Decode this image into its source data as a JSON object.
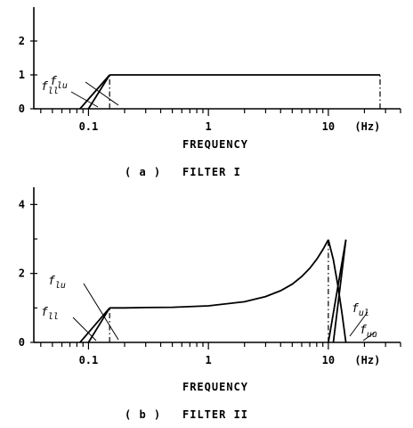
{
  "chart_data": [
    {
      "type": "line",
      "caption_label": "( a )",
      "caption_title": "FILTER  I",
      "xlabel": "FREQUENCY",
      "x_unit": "(Hz)",
      "x_scale": "log",
      "xlim": [
        0.035,
        40
      ],
      "ylim": [
        0,
        3
      ],
      "x_tick_labels": [
        {
          "value": 0.1,
          "text": "0.1"
        },
        {
          "value": 1,
          "text": "1"
        },
        {
          "value": 10,
          "text": "10"
        }
      ],
      "y_tick_labels": [
        {
          "value": 0,
          "text": "0"
        },
        {
          "value": 1,
          "text": "1"
        },
        {
          "value": 2,
          "text": "2"
        }
      ],
      "series": [
        {
          "x": [
            0.15,
            27
          ],
          "y": [
            1.0,
            1.0
          ]
        },
        {
          "x": [
            0.085,
            0.15
          ],
          "y": [
            0,
            1.0
          ]
        },
        {
          "x": [
            0.1,
            0.15
          ],
          "y": [
            0,
            1.0
          ]
        }
      ],
      "cutoff_x": [
        0.15,
        27
      ],
      "annotations": [
        {
          "text": "f",
          "sub": "lu",
          "x": 0.15,
          "y": 0.6
        },
        {
          "text": "f",
          "sub": "ll",
          "x": 0.1,
          "y": 0.05
        }
      ]
    },
    {
      "type": "line",
      "caption_label": "( b )",
      "caption_title": "FILTER  II",
      "xlabel": "FREQUENCY",
      "x_unit": "(Hz)",
      "x_scale": "log",
      "xlim": [
        0.035,
        40
      ],
      "ylim": [
        0,
        4.5
      ],
      "x_tick_labels": [
        {
          "value": 0.1,
          "text": "0.1"
        },
        {
          "value": 1,
          "text": "1"
        },
        {
          "value": 10,
          "text": "10"
        }
      ],
      "y_tick_labels": [
        {
          "value": 0,
          "text": "0"
        },
        {
          "value": 2,
          "text": "2"
        },
        {
          "value": 4,
          "text": "4"
        }
      ],
      "series": [
        {
          "x": [
            0.15,
            0.2,
            0.3,
            0.5,
            1,
            2,
            3,
            4,
            5,
            6,
            7,
            8,
            9,
            10
          ],
          "y": [
            1.0,
            1.0,
            1.01,
            1.02,
            1.06,
            1.18,
            1.33,
            1.5,
            1.69,
            1.91,
            2.15,
            2.41,
            2.69,
            2.98
          ]
        },
        {
          "x": [
            10,
            11,
            12,
            13,
            14
          ],
          "y": [
            2.98,
            2.4,
            1.65,
            0.85,
            0
          ]
        },
        {
          "x": [
            0.085,
            0.15
          ],
          "y": [
            0,
            1.0
          ]
        },
        {
          "x": [
            0.1,
            0.15
          ],
          "y": [
            0,
            1.0
          ]
        },
        {
          "x": [
            10,
            14
          ],
          "y": [
            0,
            2.98
          ]
        },
        {
          "x": [
            11,
            14
          ],
          "y": [
            0,
            2.98
          ]
        }
      ],
      "cutoff_x": [
        0.15,
        10
      ],
      "annotations": [
        {
          "text": "f",
          "sub": "lu",
          "x": 0.15,
          "y": 0.6
        },
        {
          "text": "f",
          "sub": "ll",
          "x": 0.1,
          "y": 0.05
        },
        {
          "text": "f",
          "sub": "ul",
          "x": 10.5,
          "y": 0.6
        },
        {
          "text": "f",
          "sub": "uu",
          "x": 12,
          "y": 0.2
        }
      ]
    }
  ]
}
